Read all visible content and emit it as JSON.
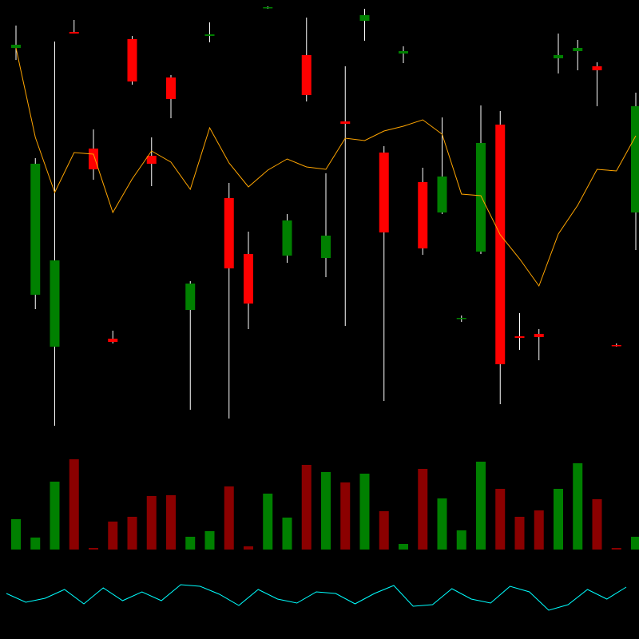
{
  "chart_data": {
    "type": "candlestick",
    "up_color": "#008000",
    "down_color": "#ff0000",
    "wick_color": "#ffffff",
    "ylim": [
      0,
      540
    ],
    "open": [
      480,
      171,
      106,
      500,
      354,
      116,
      491,
      345,
      443,
      152,
      495,
      292,
      222,
      530,
      220,
      471,
      217,
      388,
      514,
      349,
      473,
      312,
      274,
      141,
      225,
      384,
      119,
      122,
      467,
      476,
      457,
      108,
      274
    ],
    "close": [
      484,
      335,
      214,
      498,
      328,
      112,
      438,
      335,
      416,
      185,
      497,
      204,
      160,
      531,
      264,
      421,
      245,
      385,
      521,
      249,
      476,
      229,
      319,
      142,
      361,
      84,
      117,
      118,
      471,
      480,
      452,
      107,
      407
    ],
    "high": [
      508,
      342,
      488,
      515,
      378,
      126,
      495,
      368,
      446,
      188,
      512,
      311,
      250,
      532,
      272,
      518,
      323,
      457,
      529,
      357,
      482,
      330,
      393,
      145,
      408,
      401,
      148,
      128,
      498,
      490,
      462,
      110,
      424
    ],
    "low": [
      465,
      153,
      7,
      498,
      315,
      110,
      434,
      307,
      392,
      27,
      487,
      16,
      128,
      529,
      211,
      413,
      193,
      132,
      489,
      38,
      461,
      221,
      272,
      137,
      222,
      34,
      102,
      89,
      448,
      452,
      407,
      106,
      227
    ],
    "moving_average": {
      "color": "#ffa500",
      "values": [
        480,
        368,
        299,
        349,
        347,
        274,
        316,
        351,
        337,
        303,
        380,
        336,
        306,
        327,
        341,
        331,
        328,
        367,
        364,
        376,
        382,
        390,
        372,
        297,
        295,
        246,
        216,
        182,
        247,
        283,
        328,
        326,
        370
      ]
    },
    "volume": {
      "up_color": "#008000",
      "down_color": "#8b0000",
      "ylim": [
        0,
        130
      ],
      "values": [
        38,
        15,
        85,
        113,
        2,
        35,
        41,
        67,
        68,
        16,
        23,
        79,
        4,
        70,
        40,
        106,
        97,
        84,
        95,
        48,
        7,
        101,
        64,
        24,
        110,
        76,
        41,
        49,
        76,
        108,
        63,
        2,
        16
      ]
    },
    "indicator": {
      "color": "#00ffff",
      "ylim": [
        0,
        80
      ],
      "values": [
        37,
        26,
        31,
        42,
        24,
        44,
        28,
        39,
        28,
        48,
        46,
        36,
        22,
        42,
        30,
        25,
        39,
        37,
        24,
        37,
        47,
        21,
        23,
        43,
        30,
        25,
        46,
        39,
        16,
        23,
        42,
        30,
        45
      ]
    }
  }
}
